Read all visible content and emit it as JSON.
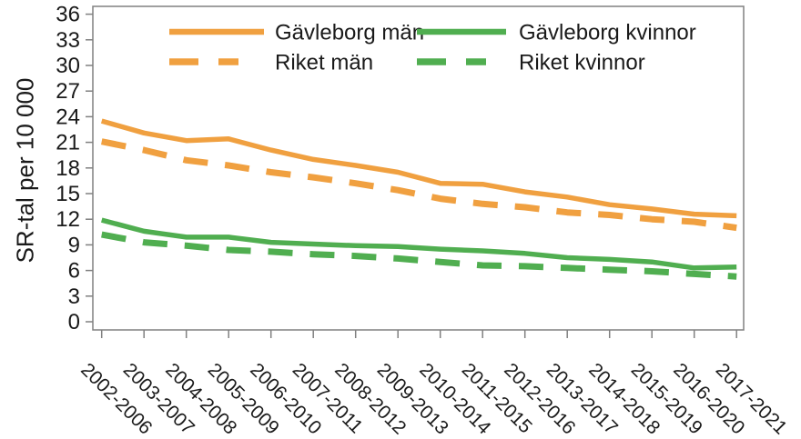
{
  "page": {
    "background": "#ffffff"
  },
  "chart_data": {
    "type": "line",
    "title": "",
    "xlabel": "",
    "ylabel": "SR-tal per 10 000",
    "categories": [
      "2002-2006",
      "2003-2007",
      "2004-2008",
      "2005-2009",
      "2006-2010",
      "2007-2011",
      "2008-2012",
      "2009-2013",
      "2010-2014",
      "2011-2015",
      "2012-2016",
      "2013-2017",
      "2014-2018",
      "2015-2019",
      "2016-2020",
      "2017-2021"
    ],
    "series": [
      {
        "name": "Gävleborg män",
        "style": "solid",
        "color": "#F0A040",
        "values": [
          23.5,
          22.1,
          21.2,
          21.4,
          20.1,
          19.0,
          18.3,
          17.5,
          16.2,
          16.1,
          15.2,
          14.6,
          13.7,
          13.2,
          12.6,
          12.4
        ]
      },
      {
        "name": "Riket män",
        "style": "dashed",
        "color": "#F0A040",
        "values": [
          21.1,
          20.1,
          18.9,
          18.3,
          17.5,
          16.9,
          16.2,
          15.4,
          14.4,
          13.8,
          13.4,
          12.8,
          12.5,
          12.0,
          11.7,
          11.0
        ]
      },
      {
        "name": "Gävleborg kvinnor",
        "style": "solid",
        "color": "#50AE50",
        "values": [
          11.9,
          10.6,
          9.9,
          9.9,
          9.3,
          9.1,
          8.9,
          8.8,
          8.5,
          8.3,
          8.0,
          7.5,
          7.3,
          7.0,
          6.3,
          6.4
        ]
      },
      {
        "name": "Riket kvinnor",
        "style": "dashed",
        "color": "#50AE50",
        "values": [
          10.2,
          9.3,
          8.9,
          8.4,
          8.2,
          7.9,
          7.7,
          7.4,
          7.0,
          6.6,
          6.5,
          6.3,
          6.1,
          5.9,
          5.6,
          5.3
        ]
      }
    ],
    "yticks": [
      0,
      3,
      6,
      9,
      12,
      15,
      18,
      21,
      24,
      27,
      30,
      33,
      36
    ],
    "ylim": [
      -1,
      37
    ],
    "grid": false,
    "legend_position": "top-inside",
    "colors": {
      "axis": "#808080",
      "text": "#1a1a1a",
      "orange": "#F0A040",
      "green": "#50AE50"
    }
  }
}
